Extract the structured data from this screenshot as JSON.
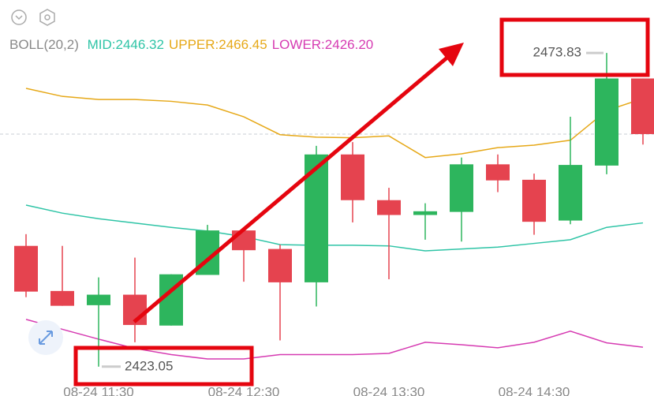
{
  "chart_data": {
    "type": "candlestick",
    "indicator": "BOLL(20,2)",
    "legend": [
      {
        "text": "MID:2446.32",
        "color": "#2ec4a6"
      },
      {
        "text": "UPPER:2466.45",
        "color": "#e6a817"
      },
      {
        "text": "LOWER:2426.20",
        "color": "#d63bb2"
      }
    ],
    "categories": [
      null,
      null,
      "08-24 11:30",
      null,
      null,
      null,
      "08-24 12:30",
      null,
      null,
      null,
      "08-24 13:30",
      null,
      null,
      null,
      "08-24 14:30",
      null,
      null,
      null
    ],
    "open": [
      2442.6,
      2435.3,
      2433.0,
      2434.7,
      2429.7,
      2437.9,
      2445.1,
      2442.1,
      2436.7,
      2457.4,
      2450.0,
      2447.6,
      2448.1,
      2455.8,
      2453.3,
      2446.7,
      2455.6,
      2469.7
    ],
    "high": [
      2444.5,
      2442.6,
      2437.5,
      2440.7,
      2438.0,
      2446.0,
      2445.1,
      2442.8,
      2458.8,
      2459.4,
      2452.0,
      2449.5,
      2456.9,
      2457.4,
      2454.3,
      2463.5,
      2473.83,
      2469.7
    ],
    "low": [
      2434.3,
      2432.9,
      2423.05,
      2427.0,
      2429.7,
      2437.9,
      2436.8,
      2427.3,
      2432.8,
      2446.4,
      2437.2,
      2443.6,
      2443.3,
      2451.3,
      2444.4,
      2446.1,
      2454.2,
      2459.0
    ],
    "close": [
      2435.2,
      2432.9,
      2434.7,
      2429.8,
      2438.0,
      2445.1,
      2441.9,
      2436.7,
      2457.4,
      2450.0,
      2447.6,
      2448.2,
      2455.8,
      2453.2,
      2446.5,
      2455.7,
      2469.7,
      2460.7
    ],
    "up_color": "#2db55d",
    "down_color": "#e5434f",
    "series": [
      {
        "name": "UPPER",
        "color": "#e6a817",
        "values": [
          2468.1,
          2466.8,
          2466.3,
          2466.3,
          2466.0,
          2465.4,
          2463.5,
          2460.6,
          2460.2,
          2460.1,
          2460.4,
          2456.9,
          2457.5,
          2458.5,
          2458.9,
          2459.7,
          2464.5,
          2466.45
        ]
      },
      {
        "name": "MID",
        "color": "#2ec4a6",
        "values": [
          2449.2,
          2447.9,
          2447.0,
          2446.3,
          2445.6,
          2445.0,
          2444.1,
          2442.8,
          2442.7,
          2442.7,
          2442.6,
          2441.8,
          2442.1,
          2442.4,
          2443.0,
          2443.6,
          2445.6,
          2446.32
        ]
      },
      {
        "name": "LOWER",
        "color": "#d63bb2",
        "values": [
          2430.7,
          2429.1,
          2427.5,
          2426.0,
          2425.0,
          2424.3,
          2424.3,
          2425.0,
          2425.0,
          2425.0,
          2425.2,
          2427.0,
          2426.6,
          2426.1,
          2427.0,
          2428.8,
          2426.9,
          2426.2
        ]
      }
    ],
    "annotations": [
      {
        "text": "2473.83",
        "index": 16
      },
      {
        "text": "2423.05",
        "index": 2
      }
    ],
    "ylim": [
      2418.3,
      2482.4
    ]
  }
}
